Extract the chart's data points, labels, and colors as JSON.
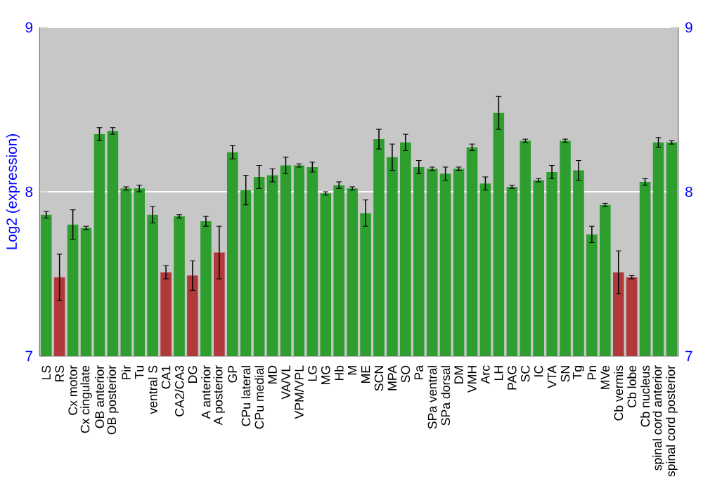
{
  "chart_data": {
    "type": "bar",
    "ylabel": "Log2 (expression)",
    "categories": [
      "LS",
      "RS",
      "Cx motor",
      "Cx cingulate",
      "OB anterior",
      "OB posterior",
      "Pir",
      "Tu",
      "ventral S",
      "CA1",
      "CA2/CA3",
      "DG",
      "A anterior",
      "A posterior",
      "GP",
      "CPu lateral",
      "CPu medial",
      "MD",
      "VA/VL",
      "VPM/VPL",
      "LG",
      "MG",
      "Hb",
      "M",
      "ME",
      "SCN",
      "MPA",
      "SO",
      "Pa",
      "SPa ventral",
      "SPa dorsal",
      "DM",
      "VMH",
      "Arc",
      "LH",
      "PAG",
      "SC",
      "IC",
      "VTA",
      "SN",
      "Tg",
      "Pn",
      "MVe",
      "Cb vermis",
      "Cb lobe",
      "Cb nucleus",
      "spinal cord anterior",
      "spinal cord posterior"
    ],
    "values": [
      7.86,
      7.48,
      7.8,
      7.78,
      8.35,
      8.37,
      8.02,
      8.02,
      7.86,
      7.51,
      7.85,
      7.49,
      7.82,
      7.63,
      8.24,
      8.01,
      8.09,
      8.1,
      8.16,
      8.16,
      8.15,
      7.99,
      8.04,
      8.02,
      7.87,
      8.32,
      8.21,
      8.3,
      8.15,
      8.14,
      8.11,
      8.14,
      8.27,
      8.05,
      8.48,
      8.03,
      8.31,
      8.07,
      8.12,
      8.31,
      8.13,
      7.74,
      7.92,
      7.51,
      7.48,
      8.06,
      8.3,
      8.3
    ],
    "errors": [
      0.02,
      0.14,
      0.09,
      0.01,
      0.04,
      0.02,
      0.01,
      0.02,
      0.05,
      0.04,
      0.01,
      0.09,
      0.03,
      0.16,
      0.04,
      0.09,
      0.07,
      0.04,
      0.05,
      0.01,
      0.03,
      0.01,
      0.02,
      0.01,
      0.08,
      0.06,
      0.08,
      0.05,
      0.04,
      0.01,
      0.04,
      0.01,
      0.02,
      0.04,
      0.1,
      0.01,
      0.01,
      0.01,
      0.04,
      0.01,
      0.06,
      0.05,
      0.01,
      0.13,
      0.01,
      0.02,
      0.03,
      0.01
    ],
    "colors": [
      "#2e9e2e",
      "#b03a3a",
      "#2e9e2e",
      "#2e9e2e",
      "#2e9e2e",
      "#2e9e2e",
      "#2e9e2e",
      "#2e9e2e",
      "#2e9e2e",
      "#b03a3a",
      "#2e9e2e",
      "#b03a3a",
      "#2e9e2e",
      "#b03a3a",
      "#2e9e2e",
      "#2e9e2e",
      "#2e9e2e",
      "#2e9e2e",
      "#2e9e2e",
      "#2e9e2e",
      "#2e9e2e",
      "#2e9e2e",
      "#2e9e2e",
      "#2e9e2e",
      "#2e9e2e",
      "#2e9e2e",
      "#2e9e2e",
      "#2e9e2e",
      "#2e9e2e",
      "#2e9e2e",
      "#2e9e2e",
      "#2e9e2e",
      "#2e9e2e",
      "#2e9e2e",
      "#2e9e2e",
      "#2e9e2e",
      "#2e9e2e",
      "#2e9e2e",
      "#2e9e2e",
      "#2e9e2e",
      "#2e9e2e",
      "#2e9e2e",
      "#2e9e2e",
      "#b03a3a",
      "#b03a3a",
      "#2e9e2e",
      "#2e9e2e",
      "#2e9e2e"
    ],
    "ylim": [
      7,
      9
    ],
    "yticks": [
      7,
      8,
      9
    ],
    "y2lim": [
      7,
      9
    ],
    "y2ticks": [
      7,
      8,
      9
    ],
    "grid": "y"
  }
}
